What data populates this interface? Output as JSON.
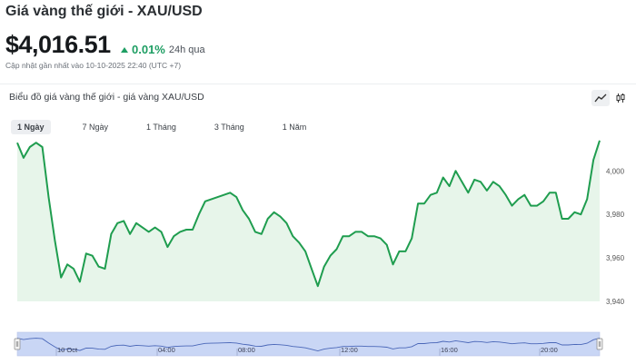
{
  "header": {
    "title": "Giá vàng thế giới - XAU/USD",
    "price": "$4,016.51",
    "change_pct": "0.01%",
    "change_period": "24h qua",
    "updated": "Cập nhật gần nhất vào 10-10-2025 22:40 (UTC +7)"
  },
  "panel": {
    "title": "Biểu đồ giá vàng thế giới - giá vàng XAU/USD"
  },
  "tabs": [
    {
      "label": "1 Ngày"
    },
    {
      "label": "7 Ngày"
    },
    {
      "label": "1 Tháng"
    },
    {
      "label": "3 Tháng"
    },
    {
      "label": "1 Năm"
    }
  ],
  "colors": {
    "line": "#1f9d4f",
    "fill": "#e7f5ea",
    "accent": "#1e9e63",
    "navigator_fill": "#c9d6f5",
    "navigator_line": "#4a67b8"
  },
  "icons": [
    "line-chart-icon",
    "candlestick-icon"
  ],
  "chart_data": {
    "type": "area",
    "title": "Biểu đồ giá vàng thế giới - giá vàng XAU/USD",
    "ylim": [
      3940,
      4016
    ],
    "yticks": [
      3940,
      3960,
      3980,
      4000
    ],
    "values": [
      4013,
      4006,
      4011,
      4013,
      4011,
      3988,
      3968,
      3951,
      3957,
      3955,
      3949,
      3962,
      3961,
      3956,
      3955,
      3971,
      3976,
      3977,
      3971,
      3976,
      3974,
      3972,
      3974,
      3972,
      3965,
      3970,
      3972,
      3973,
      3973,
      3980,
      3986,
      3987,
      3988,
      3989,
      3990,
      3988,
      3982,
      3978,
      3972,
      3971,
      3978,
      3981,
      3979,
      3976,
      3970,
      3967,
      3963,
      3955,
      3947,
      3956,
      3961,
      3964,
      3970,
      3970,
      3972,
      3972,
      3970,
      3970,
      3969,
      3966,
      3957,
      3963,
      3963,
      3969,
      3985,
      3985,
      3989,
      3990,
      3997,
      3993,
      4000,
      3995,
      3990,
      3996,
      3995,
      3991,
      3995,
      3993,
      3989,
      3984,
      3987,
      3989,
      3984,
      3984,
      3986,
      3990,
      3990,
      3978,
      3978,
      3981,
      3980,
      3987,
      4005,
      4014
    ],
    "x_ticks": [
      "10 Oct",
      "04:00",
      "08:00",
      "12:00",
      "16:00",
      "20:00"
    ],
    "grid": false,
    "legend": "none"
  }
}
